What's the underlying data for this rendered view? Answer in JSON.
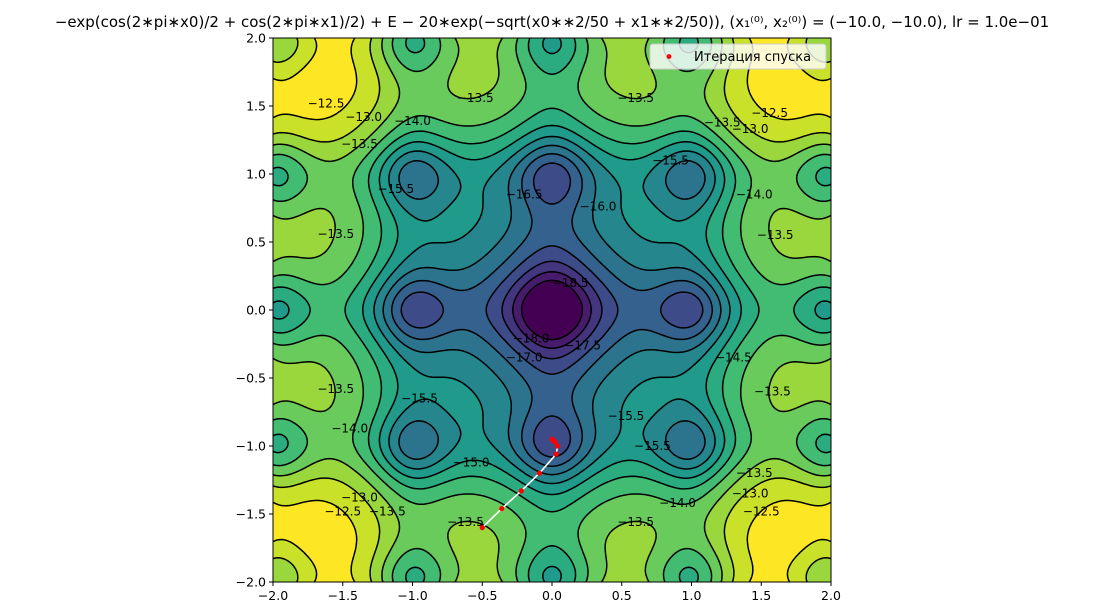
{
  "chart_data": {
    "type": "contour",
    "title": "−exp(cos(2∗pi∗x0)/2 + cos(2∗pi∗x1)/2) + E − 20∗exp(−sqrt(x0∗∗2/50 + x1∗∗2/50)), (x₁⁽⁰⁾, x₂⁽⁰⁾) = (−10.0, −10.0), lr = 1.0e−01",
    "xlabel": "",
    "ylabel": "",
    "xlim": [
      -2.0,
      2.0
    ],
    "ylim": [
      -2.0,
      2.0
    ],
    "x_ticks": [
      "−2.0",
      "−1.5",
      "−1.0",
      "−0.5",
      "0.0",
      "0.5",
      "1.0",
      "1.5",
      "2.0"
    ],
    "y_ticks": [
      "−2.0",
      "−1.5",
      "−1.0",
      "−0.5",
      "0.0",
      "0.5",
      "1.0",
      "1.5",
      "2.0"
    ],
    "colormap": "viridis",
    "levels": [
      -18.5,
      -18.0,
      -17.5,
      -17.0,
      -16.5,
      -16.0,
      -15.5,
      -15.0,
      -14.5,
      -14.0,
      -13.5,
      -13.0,
      -12.5
    ],
    "contour_labels": [
      {
        "text": "−12.5",
        "x": -1.62,
        "y": 1.52
      },
      {
        "text": "−13.0",
        "x": -1.35,
        "y": 1.42
      },
      {
        "text": "−13.5",
        "x": -1.38,
        "y": 1.22
      },
      {
        "text": "−13.5",
        "x": -0.55,
        "y": 1.56
      },
      {
        "text": "−14.0",
        "x": -1.0,
        "y": 1.39
      },
      {
        "text": "−13.5",
        "x": 0.6,
        "y": 1.56
      },
      {
        "text": "−12.5",
        "x": 1.56,
        "y": 1.45
      },
      {
        "text": "−13.5",
        "x": 1.22,
        "y": 1.38
      },
      {
        "text": "−13.0",
        "x": 1.42,
        "y": 1.33
      },
      {
        "text": "−15.5",
        "x": 0.85,
        "y": 1.1
      },
      {
        "text": "−15.5",
        "x": -1.12,
        "y": 0.89
      },
      {
        "text": "−16.5",
        "x": -0.2,
        "y": 0.85
      },
      {
        "text": "−16.0",
        "x": 0.33,
        "y": 0.76
      },
      {
        "text": "−14.0",
        "x": 1.45,
        "y": 0.85
      },
      {
        "text": "−13.5",
        "x": -1.55,
        "y": 0.56
      },
      {
        "text": "−13.5",
        "x": 1.6,
        "y": 0.55
      },
      {
        "text": "−18.5",
        "x": 0.13,
        "y": 0.2
      },
      {
        "text": "−18.0",
        "x": -0.15,
        "y": -0.21
      },
      {
        "text": "−17.5",
        "x": 0.22,
        "y": -0.26
      },
      {
        "text": "−17.0",
        "x": -0.2,
        "y": -0.35
      },
      {
        "text": "−14.5",
        "x": 1.3,
        "y": -0.35
      },
      {
        "text": "−13.5",
        "x": -1.55,
        "y": -0.58
      },
      {
        "text": "−13.5",
        "x": 1.58,
        "y": -0.6
      },
      {
        "text": "−15.5",
        "x": -0.95,
        "y": -0.65
      },
      {
        "text": "−14.0",
        "x": -1.45,
        "y": -0.87
      },
      {
        "text": "−15.5",
        "x": 0.53,
        "y": -0.78
      },
      {
        "text": "−15.5",
        "x": 0.72,
        "y": -1.0
      },
      {
        "text": "−15.0",
        "x": -0.58,
        "y": -1.12
      },
      {
        "text": "−13.5",
        "x": 1.45,
        "y": -1.2
      },
      {
        "text": "−13.0",
        "x": 1.42,
        "y": -1.35
      },
      {
        "text": "−13.0",
        "x": -1.38,
        "y": -1.38
      },
      {
        "text": "−13.5",
        "x": -1.18,
        "y": -1.48
      },
      {
        "text": "−14.0",
        "x": 0.9,
        "y": -1.42
      },
      {
        "text": "−12.5",
        "x": -1.5,
        "y": -1.48
      },
      {
        "text": "−12.5",
        "x": 1.5,
        "y": -1.48
      },
      {
        "text": "−13.5",
        "x": -0.62,
        "y": -1.56
      },
      {
        "text": "−13.5",
        "x": 0.6,
        "y": -1.56
      }
    ],
    "series": [
      {
        "name": "Итерация спуска",
        "type": "scatter+line",
        "x": [
          -0.5,
          -0.36,
          -0.22,
          -0.09,
          0.03,
          0.04,
          0.02,
          0.01,
          0.0
        ],
        "y": [
          -1.6,
          -1.46,
          -1.33,
          -1.2,
          -1.06,
          -1.0,
          -0.97,
          -0.96,
          -0.95
        ]
      }
    ],
    "legend": {
      "placement": "top-right",
      "entries": [
        "Итерация спуска"
      ]
    },
    "colors": {
      "path_line": "#ffffff",
      "points": "#ff0000"
    },
    "grid": false
  }
}
